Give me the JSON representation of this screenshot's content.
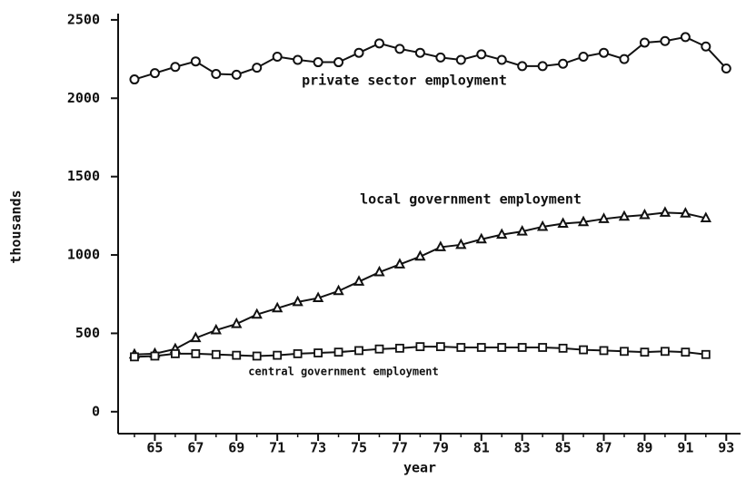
{
  "chart_data": {
    "type": "line",
    "x_label": "year",
    "y_label": "thousands",
    "x": [
      64,
      65,
      66,
      67,
      68,
      69,
      70,
      71,
      72,
      73,
      74,
      75,
      76,
      77,
      78,
      79,
      80,
      81,
      82,
      83,
      84,
      85,
      86,
      87,
      88,
      89,
      90,
      91,
      92,
      93
    ],
    "series": [
      {
        "name": "private sector employment",
        "color": "#111111",
        "marker": "circle",
        "values": [
          2120,
          2160,
          2200,
          2235,
          2155,
          2150,
          2195,
          2265,
          2245,
          2230,
          2230,
          2290,
          2350,
          2315,
          2290,
          2260,
          2245,
          2280,
          2245,
          2205,
          2205,
          2220,
          2265,
          2290,
          2250,
          2355,
          2365,
          2390,
          2330,
          2190
        ]
      },
      {
        "name": "local government employment",
        "color": "#111111",
        "marker": "triangle",
        "values": [
          365,
          370,
          400,
          470,
          520,
          560,
          620,
          660,
          700,
          725,
          770,
          830,
          890,
          940,
          990,
          1050,
          1065,
          1100,
          1130,
          1150,
          1180,
          1200,
          1210,
          1230,
          1245,
          1255,
          1270,
          1265,
          1235,
          null
        ]
      },
      {
        "name": "central government employment",
        "color": "#111111",
        "marker": "square",
        "values": [
          350,
          355,
          370,
          370,
          365,
          360,
          355,
          360,
          370,
          375,
          380,
          390,
          400,
          405,
          415,
          415,
          410,
          410,
          410,
          410,
          410,
          405,
          395,
          390,
          385,
          380,
          385,
          380,
          365,
          null
        ]
      }
    ],
    "xlim": [
      63.2,
      93.7
    ],
    "xticks": [
      65,
      67,
      69,
      71,
      73,
      75,
      77,
      79,
      81,
      83,
      85,
      87,
      89,
      91,
      93
    ],
    "ylim": [
      -140,
      2540
    ],
    "yticks": [
      0,
      500,
      1000,
      1500,
      2000,
      2500
    ],
    "grid": false
  }
}
